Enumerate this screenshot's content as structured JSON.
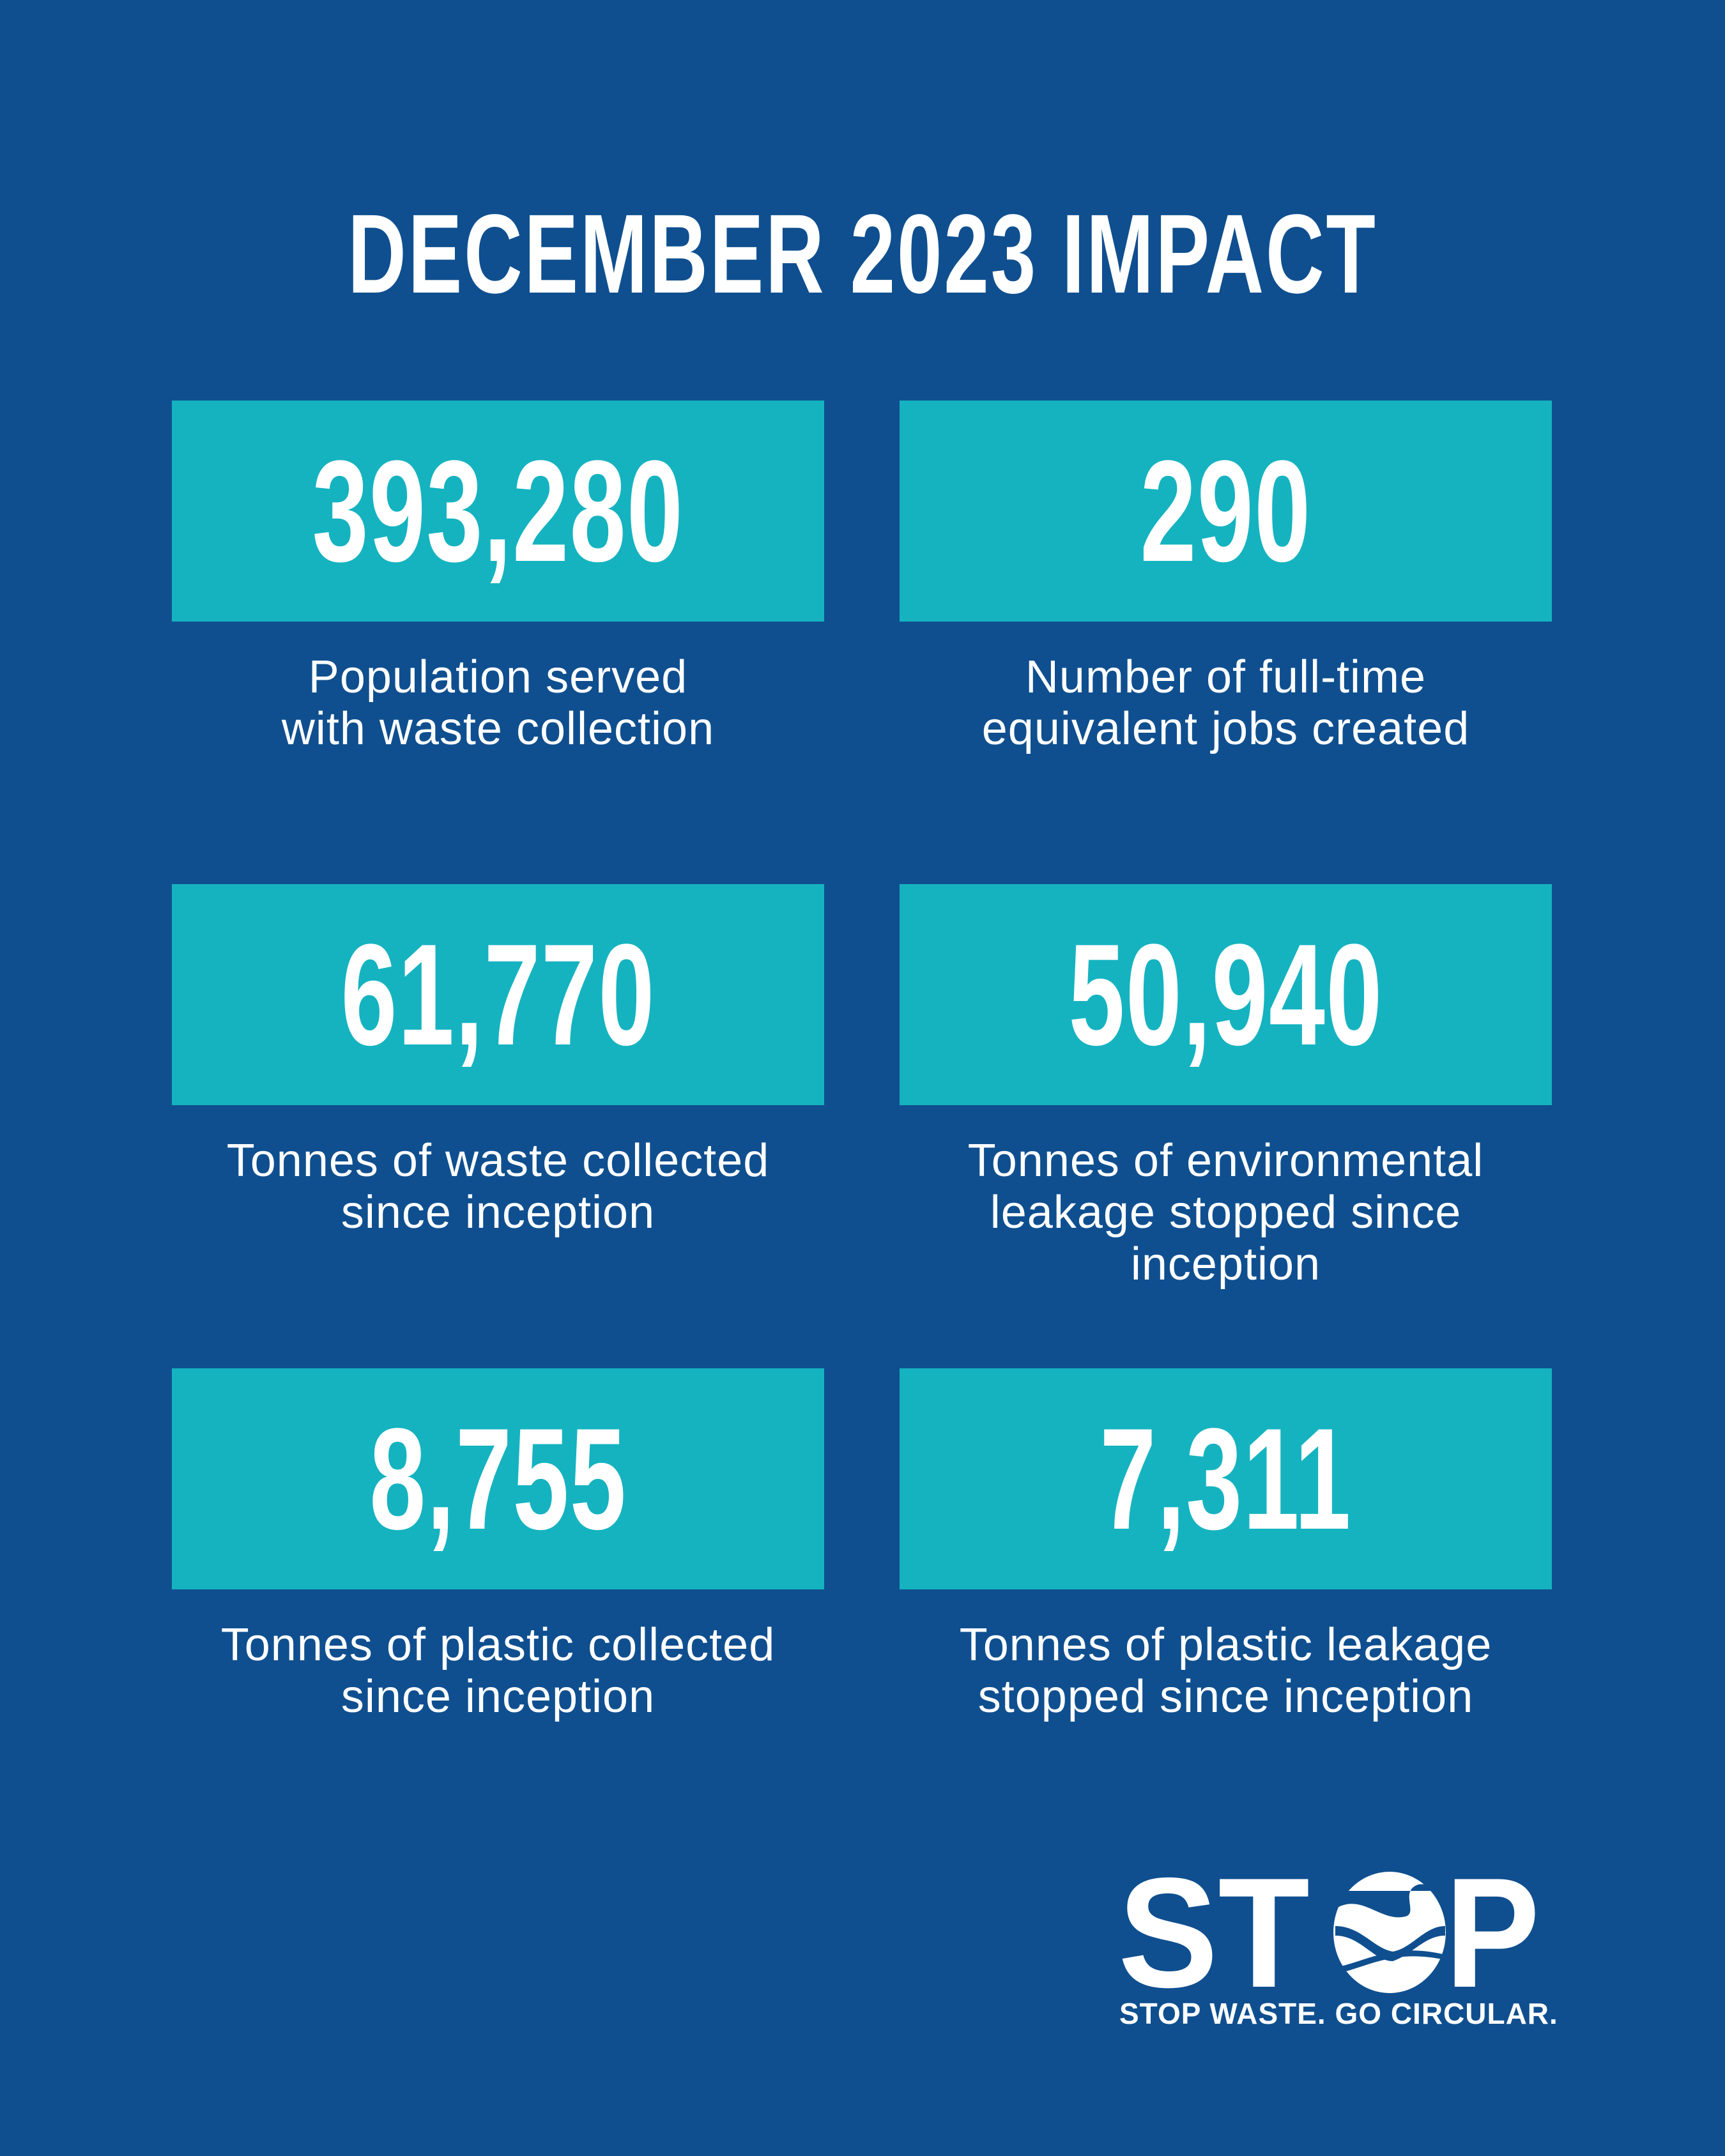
{
  "title": "DECEMBER 2023 IMPACT",
  "stats": [
    {
      "value": "393,280",
      "label": "Population served with waste collection"
    },
    {
      "value": "290",
      "label": "Number of full-time equivalent jobs created"
    },
    {
      "value": "61,770",
      "label": "Tonnes of waste collected since inception"
    },
    {
      "value": "50,940",
      "label": "Tonnes of environmental leakage stopped since inception"
    },
    {
      "value": "8,755",
      "label": "Tonnes of plastic collected since inception"
    },
    {
      "value": "7,311",
      "label": "Tonnes of plastic leakage stopped since inception"
    }
  ],
  "logo": {
    "wordmark": "STOP",
    "tagline": "STOP WASTE. GO CIRCULAR."
  },
  "colors": {
    "background": "#0f4f8f",
    "tile": "#15b3c0",
    "text": "#ffffff"
  }
}
